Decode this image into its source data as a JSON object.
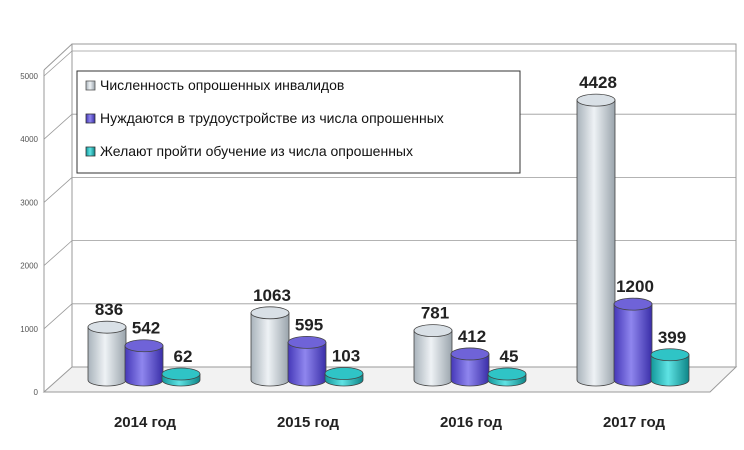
{
  "chart_data": {
    "type": "bar",
    "style": "3d-cylinder",
    "categories": [
      "2014 год",
      "2015 год",
      "2016 год",
      "2017 год"
    ],
    "series": [
      {
        "name": "Численность опрошенных инвалидов",
        "values": [
          836,
          1063,
          781,
          4428
        ],
        "color": "#d9e0e6"
      },
      {
        "name": "Нуждаются в трудоустройстве из числа опрошенных",
        "values": [
          542,
          595,
          412,
          1200
        ],
        "color": "#6f63d8"
      },
      {
        "name": "Желают пройти обучение из числа опрошенных",
        "values": [
          62,
          103,
          45,
          399
        ],
        "color": "#2fc4c6"
      }
    ],
    "data_labels": [
      [
        "836",
        "542",
        "62"
      ],
      [
        "1063",
        "595",
        "103"
      ],
      [
        "781",
        "412",
        "45"
      ],
      [
        "4428",
        "1200",
        "399"
      ]
    ],
    "y_ticks": [
      "0",
      "1000",
      "2000",
      "3000",
      "4000",
      "5000"
    ],
    "ylim": [
      0,
      5000
    ],
    "grid": true,
    "legend_position": "top-left"
  }
}
